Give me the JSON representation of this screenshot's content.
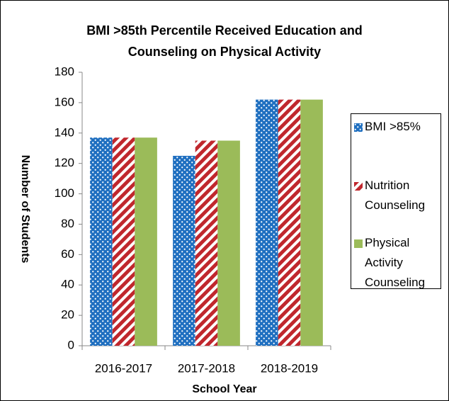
{
  "chart_data": {
    "type": "bar",
    "title": [
      "BMI >85th Percentile Received Education and",
      "Counseling on Physical Activity"
    ],
    "x_label": "School Year",
    "y_label": "Number of Students",
    "categories": [
      "2016-2017",
      "2017-2018",
      "2018-2019"
    ],
    "series": [
      {
        "name": "BMI >85%",
        "color": "#1f6fc0",
        "pattern": "dots",
        "values": [
          137,
          125,
          162
        ]
      },
      {
        "name": "Nutrition Counseling",
        "color": "#c0272d",
        "pattern": "stripes",
        "values": [
          137,
          135,
          162
        ]
      },
      {
        "name": "Physical Activity Counseling",
        "color": "#9bbb59",
        "pattern": "solid",
        "values": [
          137,
          135,
          162
        ]
      }
    ],
    "ylim": [
      0,
      180
    ],
    "yticks": [
      0,
      20,
      40,
      60,
      80,
      100,
      120,
      140,
      160,
      180
    ],
    "grid": false,
    "legend": "right"
  }
}
